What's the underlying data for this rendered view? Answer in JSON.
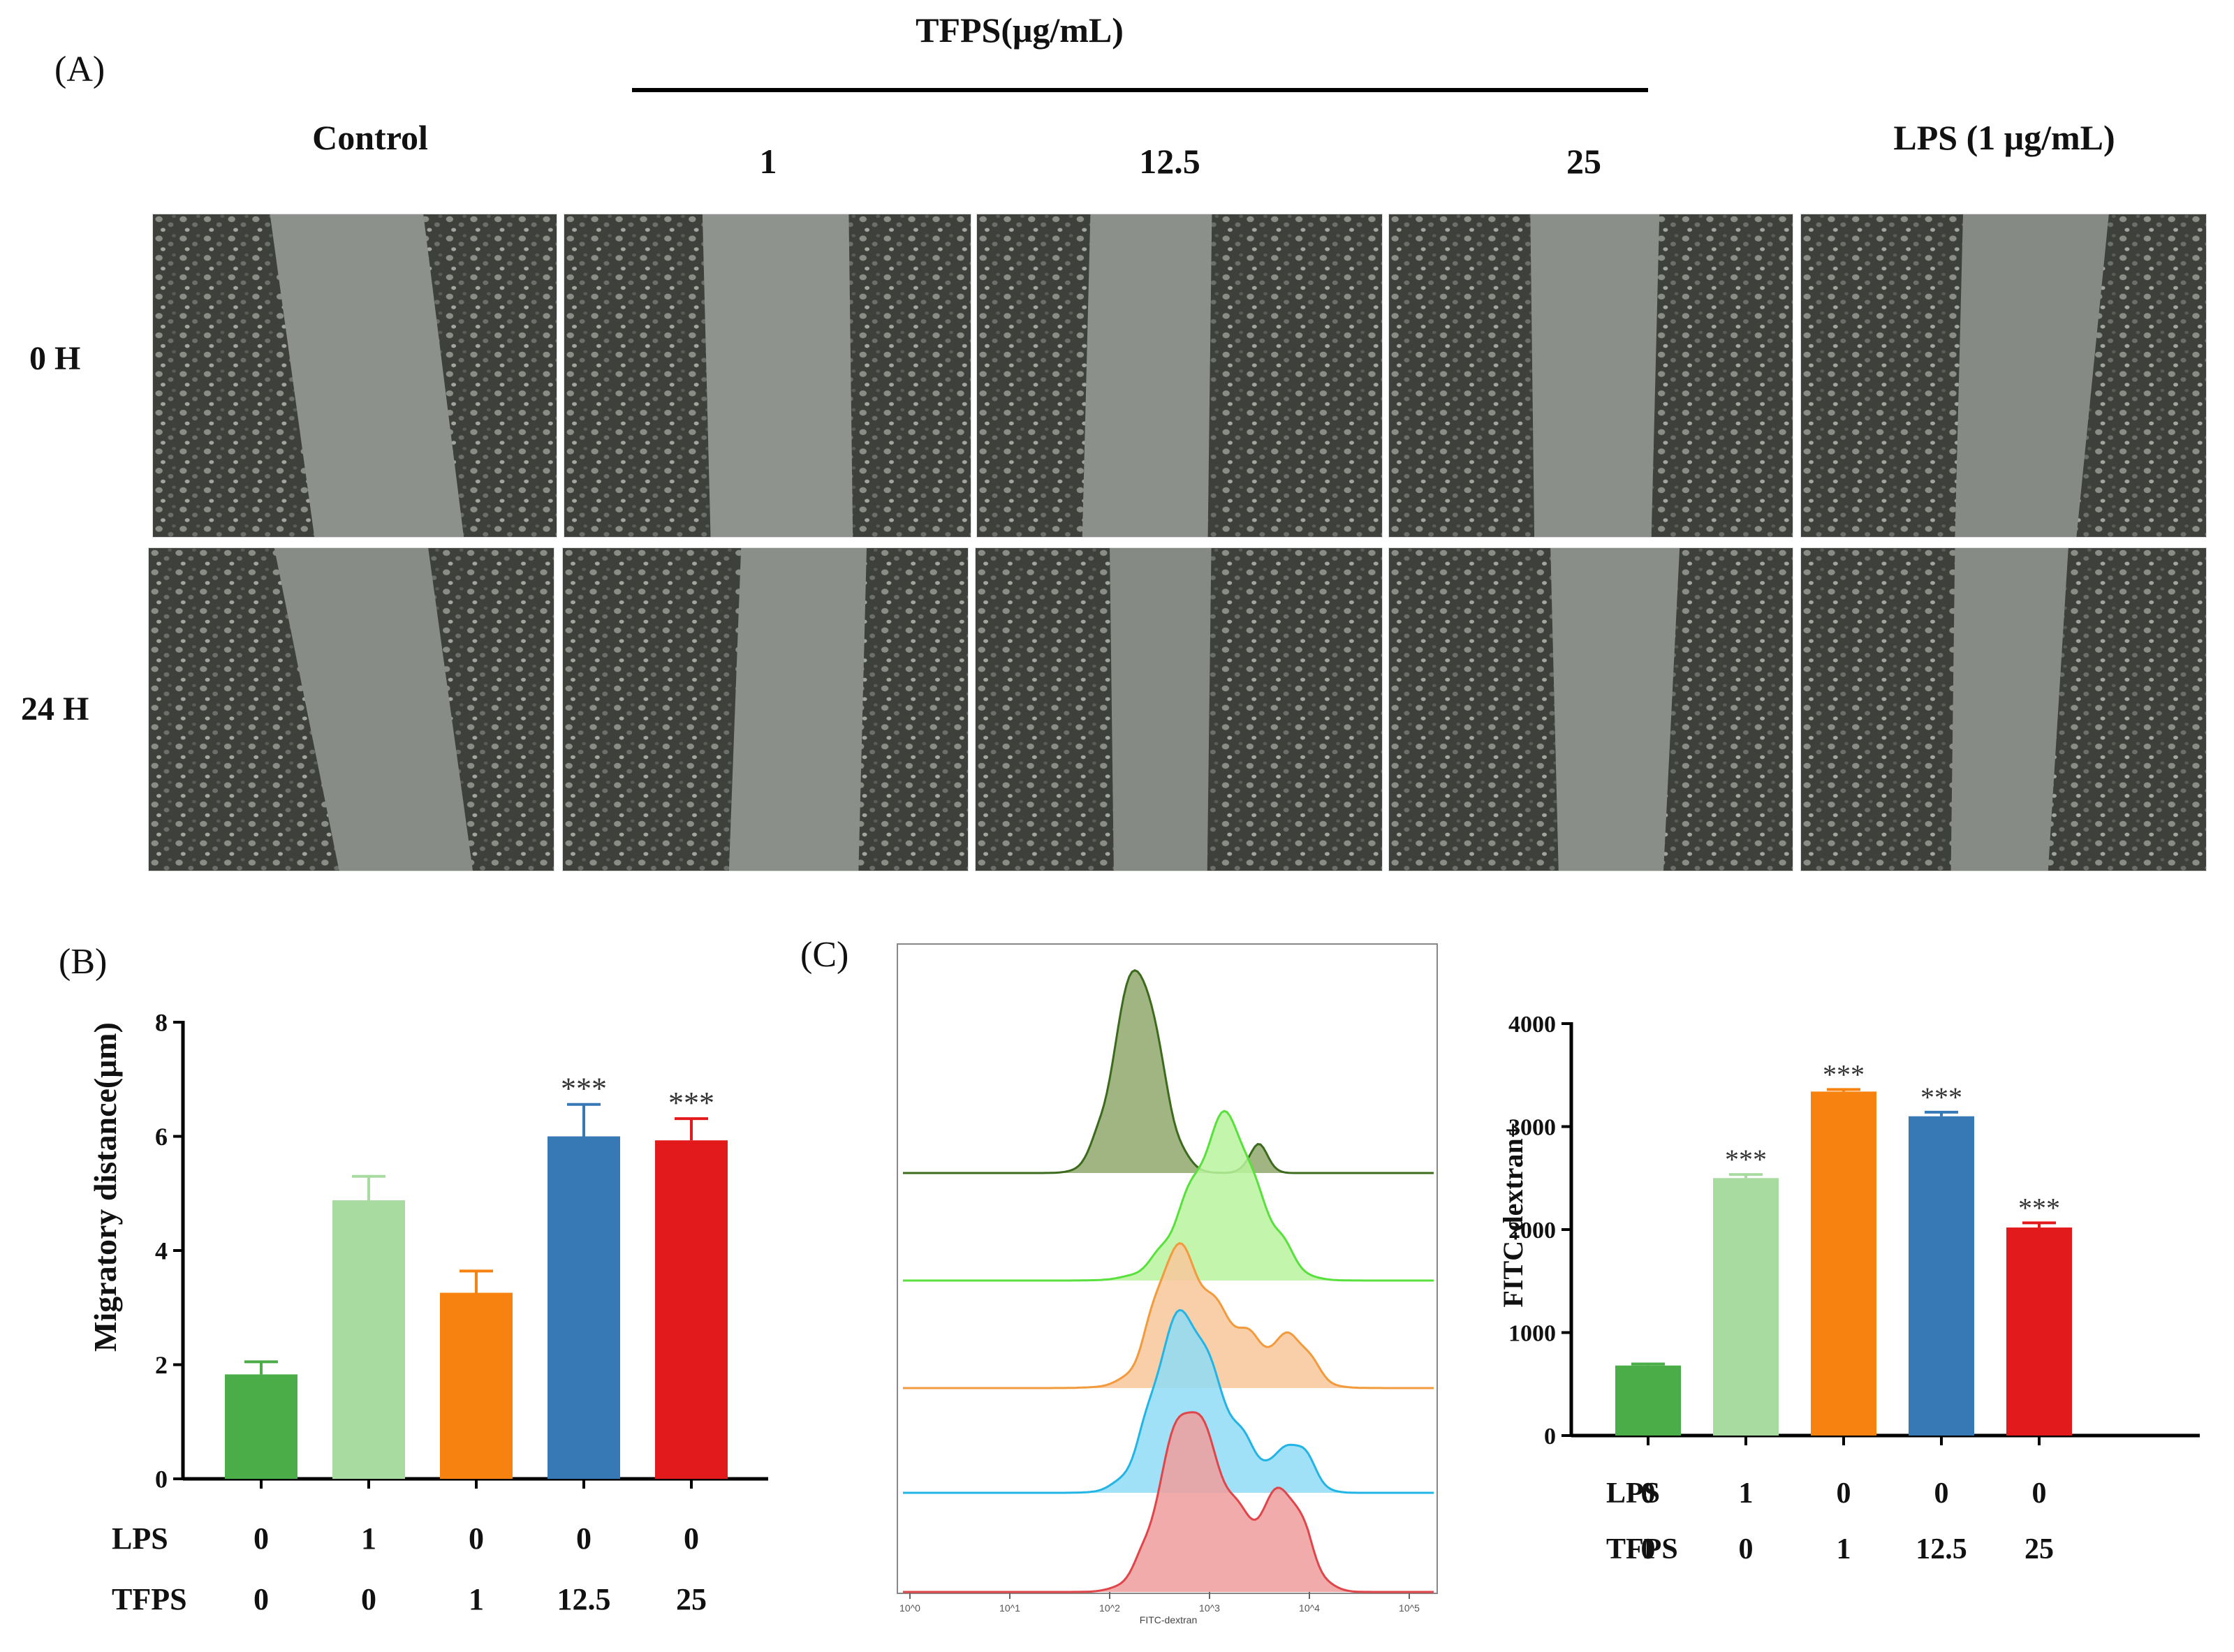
{
  "panel_a": {
    "label": "(A)",
    "group_title": "TFPS(μg/mL)",
    "columns": [
      "Control",
      "1",
      "12.5",
      "25",
      "LPS (1 μg/mL)"
    ],
    "rows": [
      "0 H",
      "24 H"
    ]
  },
  "panel_b": {
    "label": "(B)"
  },
  "panel_c": {
    "label": "(C)"
  },
  "flow": {
    "xlabel": "FITC-dextran",
    "ticks": [
      "10^0",
      "10^1",
      "10^2",
      "10^3",
      "10^4",
      "10^5"
    ]
  },
  "colors": {
    "green": "#4aad47",
    "lightgreen": "#a8dba0",
    "orange": "#f7820f",
    "blue": "#3779b5",
    "red": "#e31a1c"
  },
  "chart_data": [
    {
      "type": "bar",
      "ylabel": "Migratory distance(μm)",
      "ylim": [
        0,
        8
      ],
      "yticks": [
        0,
        2,
        4,
        6,
        8
      ],
      "values": [
        1.83,
        4.88,
        3.26,
        6.0,
        5.93
      ],
      "errors": [
        0.22,
        0.42,
        0.38,
        0.56,
        0.38
      ],
      "significance": [
        "",
        "",
        "",
        "***",
        "***"
      ],
      "row_labels": [
        "LPS",
        "TFPS"
      ],
      "rows": [
        [
          "0",
          "1",
          "0",
          "0",
          "0"
        ],
        [
          "0",
          "0",
          "1",
          "12.5",
          "25"
        ]
      ]
    },
    {
      "type": "bar",
      "ylabel": "FITC-dextran+",
      "ylim": [
        0,
        4000
      ],
      "yticks": [
        0,
        1000,
        2000,
        3000,
        4000
      ],
      "values": [
        680,
        2500,
        3340,
        3100,
        2020
      ],
      "errors": [
        15,
        35,
        20,
        40,
        45
      ],
      "significance": [
        "",
        "***",
        "***",
        "***",
        "***"
      ],
      "row_labels": [
        "LPS",
        "TFPS"
      ],
      "rows": [
        [
          "0",
          "1",
          "0",
          "0",
          "0"
        ],
        [
          "0",
          "0",
          "1",
          "12.5",
          "25"
        ]
      ]
    }
  ]
}
